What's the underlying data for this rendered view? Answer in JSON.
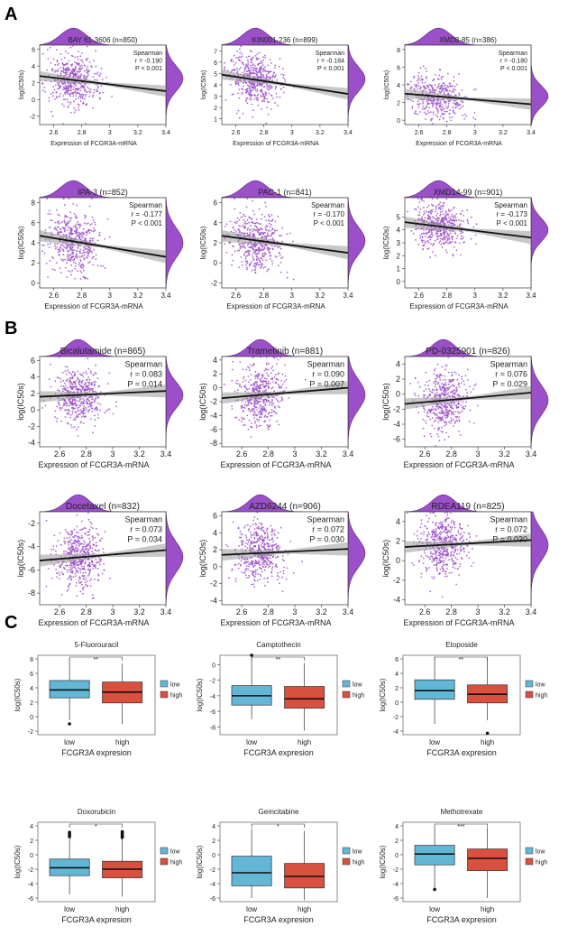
{
  "figure": {
    "panel_labels": [
      "A",
      "B",
      "C"
    ],
    "accent_color": "#9b4fc8",
    "density_fill": "#9b4fc8",
    "point_color": "#9b4fc8",
    "low_color": "#62b6d6",
    "high_color": "#d9503f"
  },
  "chart_data": [
    {
      "panel": "A",
      "type": "scatter",
      "title": "BAY 61-3606 (n=850)",
      "xlabel": "Expression of FCGR3A-mRNA",
      "ylabel": "log(IC50s)",
      "xlim": [
        2.5,
        3.4
      ],
      "ylim": [
        -3,
        6.5
      ],
      "xticks": [
        2.6,
        2.8,
        3.0,
        3.2,
        3.4
      ],
      "yticks": [
        -2,
        0,
        2,
        4,
        6
      ],
      "stat_label": "Spearman",
      "r_label": "r = -0.190",
      "p_label": "P < 0.001",
      "r": -0.19,
      "n": 850,
      "fit": {
        "x": [
          2.5,
          3.4
        ],
        "y": [
          2.8,
          1.0
        ]
      },
      "center": [
        2.74,
        2.5
      ],
      "spread": [
        0.09,
        1.5
      ]
    },
    {
      "panel": "A",
      "type": "scatter",
      "title": "KIN001-236 (n=899)",
      "xlabel": "Expression of FCGR3A-mRNA",
      "ylabel": "log(IC50s)",
      "xlim": [
        2.5,
        3.4
      ],
      "ylim": [
        0.5,
        7.5
      ],
      "xticks": [
        2.6,
        2.8,
        3.0,
        3.2,
        3.4
      ],
      "yticks": [
        1,
        2,
        3,
        4,
        5,
        6,
        7
      ],
      "stat_label": "Spearman",
      "r_label": "r = -0.184",
      "p_label": "P < 0.001",
      "r": -0.184,
      "n": 899,
      "fit": {
        "x": [
          2.5,
          3.4
        ],
        "y": [
          4.9,
          3.2
        ]
      },
      "center": [
        2.74,
        4.5
      ],
      "spread": [
        0.09,
        1.1
      ]
    },
    {
      "panel": "A",
      "type": "scatter",
      "title": "XMD8-85 (n=386)",
      "xlabel": "Expression of FCGR3A-mRNA",
      "ylabel": "log(IC50s)",
      "xlim": [
        2.5,
        3.4
      ],
      "ylim": [
        -0.5,
        8.5
      ],
      "xticks": [
        2.6,
        2.8,
        3.0,
        3.2,
        3.4
      ],
      "yticks": [
        0,
        2,
        4,
        6,
        8
      ],
      "stat_label": "Spearman",
      "r_label": "r = -0.180",
      "p_label": "P < 0.001",
      "r": -0.18,
      "n": 386,
      "fit": {
        "x": [
          2.5,
          3.4
        ],
        "y": [
          3.0,
          1.8
        ]
      },
      "center": [
        2.74,
        2.7
      ],
      "spread": [
        0.09,
        1.2
      ]
    },
    {
      "panel": "A",
      "type": "scatter",
      "title": "IPA-3 (n=852)",
      "xlabel": "Expression of FCGR3A-mRNA",
      "ylabel": "log(IC50s)",
      "xlim": [
        2.5,
        3.4
      ],
      "ylim": [
        -0.5,
        8.5
      ],
      "xticks": [
        2.6,
        2.8,
        3.0,
        3.2,
        3.4
      ],
      "yticks": [
        0,
        2,
        4,
        6,
        8
      ],
      "stat_label": "Spearman",
      "r_label": "r = -0.177",
      "p_label": "P < 0.001",
      "r": -0.177,
      "n": 852,
      "fit": {
        "x": [
          2.5,
          3.4
        ],
        "y": [
          4.7,
          2.6
        ]
      },
      "center": [
        2.74,
        4.0
      ],
      "spread": [
        0.09,
        1.5
      ]
    },
    {
      "panel": "A",
      "type": "scatter",
      "title": "PAC-1 (n=841)",
      "xlabel": "Expression of FCGR3A-mRNA",
      "ylabel": "log(IC50s)",
      "xlim": [
        2.5,
        3.4
      ],
      "ylim": [
        -2.5,
        6.5
      ],
      "xticks": [
        2.6,
        2.8,
        3.0,
        3.2,
        3.4
      ],
      "yticks": [
        -2,
        0,
        2,
        4,
        6
      ],
      "stat_label": "Spearman",
      "r_label": "r = -0.170",
      "p_label": "P < 0.001",
      "r": -0.17,
      "n": 841,
      "fit": {
        "x": [
          2.5,
          3.4
        ],
        "y": [
          2.7,
          1.0
        ]
      },
      "center": [
        2.74,
        2.2
      ],
      "spread": [
        0.09,
        1.4
      ]
    },
    {
      "panel": "A",
      "type": "scatter",
      "title": "XMD14-99 (n=901)",
      "xlabel": "Expression of FCGR3A-mRNA",
      "ylabel": "log(IC50s)",
      "xlim": [
        2.5,
        3.4
      ],
      "ylim": [
        -0.5,
        6.5
      ],
      "xticks": [
        2.6,
        2.8,
        3.0,
        3.2,
        3.4
      ],
      "yticks": [
        0,
        1,
        2,
        3,
        4,
        5
      ],
      "stat_label": "Spearman",
      "r_label": "r = -0.173",
      "p_label": "P < 0.001",
      "r": -0.173,
      "n": 901,
      "fit": {
        "x": [
          2.5,
          3.4
        ],
        "y": [
          4.6,
          3.4
        ]
      },
      "center": [
        2.74,
        4.0
      ],
      "spread": [
        0.09,
        0.9
      ]
    },
    {
      "panel": "B",
      "type": "scatter",
      "title": "Bicalutamide (n=865)",
      "xlabel": "Expression of FCGR3A-mRNA",
      "ylabel": "log(IC50s)",
      "xlim": [
        2.45,
        3.4
      ],
      "ylim": [
        -4.5,
        6.5
      ],
      "xticks": [
        2.6,
        2.8,
        3.0,
        3.2,
        3.4
      ],
      "yticks": [
        -4,
        -2,
        0,
        2,
        4,
        6
      ],
      "stat_label": "Spearman",
      "r_label": "r = 0.083",
      "p_label": "P = 0.014",
      "r": 0.083,
      "n": 865,
      "fit": {
        "x": [
          2.45,
          3.4
        ],
        "y": [
          1.6,
          2.3
        ]
      },
      "center": [
        2.74,
        1.8
      ],
      "spread": [
        0.09,
        1.6
      ]
    },
    {
      "panel": "B",
      "type": "scatter",
      "title": "Trametinib (n=881)",
      "xlabel": "Expression of FCGR3A-mRNA",
      "ylabel": "log(IC50s)",
      "xlim": [
        2.45,
        3.4
      ],
      "ylim": [
        -8.5,
        4.5
      ],
      "xticks": [
        2.6,
        2.8,
        3.0,
        3.2,
        3.4
      ],
      "yticks": [
        -8,
        -6,
        -4,
        -2,
        0,
        2,
        4
      ],
      "stat_label": "Spearman",
      "r_label": "r = 0.090",
      "p_label": "P = 0.007",
      "r": 0.09,
      "n": 881,
      "fit": {
        "x": [
          2.45,
          3.4
        ],
        "y": [
          -1.5,
          0.0
        ]
      },
      "center": [
        2.74,
        -1.0
      ],
      "spread": [
        0.09,
        2.2
      ]
    },
    {
      "panel": "B",
      "type": "scatter",
      "title": "PD-0325901 (n=826)",
      "xlabel": "Expression of FCGR3A-mRNA",
      "ylabel": "log(IC50s)",
      "xlim": [
        2.45,
        3.4
      ],
      "ylim": [
        -7,
        5
      ],
      "xticks": [
        2.6,
        2.8,
        3.0,
        3.2,
        3.4
      ],
      "yticks": [
        -6,
        -4,
        -2,
        0,
        2,
        4
      ],
      "stat_label": "Spearman",
      "r_label": "r = 0.076",
      "p_label": "P = 0.029",
      "r": 0.076,
      "n": 826,
      "fit": {
        "x": [
          2.45,
          3.4
        ],
        "y": [
          -1.3,
          0.2
        ]
      },
      "center": [
        2.74,
        -0.8
      ],
      "spread": [
        0.09,
        2.0
      ]
    },
    {
      "panel": "B",
      "type": "scatter",
      "title": "Docetaxel (n=832)",
      "xlabel": "Expression of FCGR3A-mRNA",
      "ylabel": "log(IC50s)",
      "xlim": [
        2.45,
        3.4
      ],
      "ylim": [
        -9,
        -1
      ],
      "xticks": [
        2.6,
        2.8,
        3.0,
        3.2,
        3.4
      ],
      "yticks": [
        -8,
        -6,
        -4,
        -2
      ],
      "stat_label": "Spearman",
      "r_label": "r = 0.073",
      "p_label": "P = 0.034",
      "r": 0.073,
      "n": 832,
      "fit": {
        "x": [
          2.45,
          3.4
        ],
        "y": [
          -5.2,
          -4.3
        ]
      },
      "center": [
        2.74,
        -4.9
      ],
      "spread": [
        0.09,
        1.3
      ]
    },
    {
      "panel": "B",
      "type": "scatter",
      "title": "AZD6244 (n=906)",
      "xlabel": "Expression of FCGR3A-mRNA",
      "ylabel": "log(IC50s)",
      "xlim": [
        2.45,
        3.4
      ],
      "ylim": [
        -4.5,
        6.5
      ],
      "xticks": [
        2.6,
        2.8,
        3.0,
        3.2,
        3.4
      ],
      "yticks": [
        -4,
        -2,
        0,
        2,
        4,
        6
      ],
      "stat_label": "Spearman",
      "r_label": "r = 0.072",
      "p_label": "P = 0.030",
      "r": 0.072,
      "n": 906,
      "fit": {
        "x": [
          2.45,
          3.4
        ],
        "y": [
          1.4,
          2.1
        ]
      },
      "center": [
        2.74,
        1.6
      ],
      "spread": [
        0.09,
        1.7
      ]
    },
    {
      "panel": "B",
      "type": "scatter",
      "title": "RDEA119 (n=825)",
      "xlabel": "Expression of FCGR3A-mRNA",
      "ylabel": "log(IC50s)",
      "xlim": [
        2.45,
        3.4
      ],
      "ylim": [
        -4.5,
        5
      ],
      "xticks": [
        2.6,
        2.8,
        3.0,
        3.2,
        3.4
      ],
      "yticks": [
        -4,
        -2,
        0,
        2,
        4
      ],
      "stat_label": "Spearman",
      "r_label": "r = 0.072",
      "p_label": "P = 0.030",
      "r": 0.072,
      "n": 825,
      "fit": {
        "x": [
          2.45,
          3.4
        ],
        "y": [
          1.4,
          2.1
        ]
      },
      "center": [
        2.74,
        1.6
      ],
      "spread": [
        0.09,
        1.6
      ]
    },
    {
      "panel": "C",
      "type": "box",
      "title": "5-Fluorouracil",
      "xlabel": "FCGR3A expresion",
      "ylabel": "log(IC50s)",
      "categories": [
        "low",
        "high"
      ],
      "legend": [
        "low",
        "high"
      ],
      "sig": "**",
      "ylim": [
        -2.5,
        8.5
      ],
      "yticks": [
        -2,
        0,
        2,
        4,
        6,
        8
      ],
      "boxes": [
        {
          "min": -0.5,
          "q1": 2.6,
          "med": 3.7,
          "q3": 5.0,
          "max": 8.0,
          "outliers": [
            -1.0
          ]
        },
        {
          "min": -1.0,
          "q1": 1.9,
          "med": 3.4,
          "q3": 4.8,
          "max": 7.3,
          "outliers": []
        }
      ]
    },
    {
      "panel": "C",
      "type": "box",
      "title": "Camptothecin",
      "xlabel": "FCGR3A expresion",
      "ylabel": "log(IC50s)",
      "categories": [
        "low",
        "high"
      ],
      "legend": [
        "low",
        "high"
      ],
      "sig": "**",
      "ylim": [
        -9,
        1.2
      ],
      "yticks": [
        -8,
        -6,
        -4,
        -2,
        0
      ],
      "boxes": [
        {
          "min": -7.0,
          "q1": -5.2,
          "med": -4.0,
          "q3": -2.7,
          "max": 1.2,
          "outliers": [
            1.2
          ]
        },
        {
          "min": -8.5,
          "q1": -5.6,
          "med": -4.4,
          "q3": -2.8,
          "max": 0.2,
          "outliers": []
        }
      ]
    },
    {
      "panel": "C",
      "type": "box",
      "title": "Etoposide",
      "xlabel": "FCGR3A expresion",
      "ylabel": "log(IC50s)",
      "categories": [
        "low",
        "high"
      ],
      "legend": [
        "low",
        "high"
      ],
      "sig": "**",
      "ylim": [
        -4.5,
        6.5
      ],
      "yticks": [
        -4,
        -2,
        0,
        2,
        4,
        6
      ],
      "boxes": [
        {
          "min": -3.0,
          "q1": 0.4,
          "med": 1.6,
          "q3": 3.1,
          "max": 6.3,
          "outliers": []
        },
        {
          "min": -2.5,
          "q1": -0.1,
          "med": 1.1,
          "q3": 2.4,
          "max": 6.2,
          "outliers": [
            -4.3
          ]
        }
      ]
    },
    {
      "panel": "C",
      "type": "box",
      "title": "Doxorubicin",
      "xlabel": "FCGR3A expresion",
      "ylabel": "log(IC50s)",
      "categories": [
        "low",
        "high"
      ],
      "legend": [
        "low",
        "high"
      ],
      "sig": "*",
      "ylim": [
        -6.5,
        4.5
      ],
      "yticks": [
        -6,
        -4,
        -2,
        0,
        2,
        4
      ],
      "boxes": [
        {
          "min": -5.5,
          "q1": -2.9,
          "med": -1.8,
          "q3": -0.6,
          "max": 2.3,
          "outliers": [
            2.5,
            2.7,
            2.9,
            3.1
          ]
        },
        {
          "min": -5.8,
          "q1": -3.2,
          "med": -2.0,
          "q3": -0.9,
          "max": 2.2,
          "outliers": [
            2.4,
            2.6,
            2.8,
            3.0,
            3.2
          ]
        }
      ]
    },
    {
      "panel": "C",
      "type": "box",
      "title": "Gemcitabine",
      "xlabel": "FCGR3A expresion",
      "ylabel": "log(IC50s)",
      "categories": [
        "low",
        "high"
      ],
      "legend": [
        "low",
        "high"
      ],
      "sig": "*",
      "ylim": [
        -6.5,
        4.5
      ],
      "yticks": [
        -6,
        -4,
        -2,
        0,
        2,
        4
      ],
      "boxes": [
        {
          "min": -6.0,
          "q1": -4.3,
          "med": -2.5,
          "q3": -0.2,
          "max": 3.6,
          "outliers": []
        },
        {
          "min": -6.3,
          "q1": -4.6,
          "med": -3.0,
          "q3": -1.2,
          "max": 3.3,
          "outliers": []
        }
      ]
    },
    {
      "panel": "C",
      "type": "box",
      "title": "Methotrexate",
      "xlabel": "FCGR3A expresion",
      "ylabel": "log(IC50s)",
      "categories": [
        "low",
        "high"
      ],
      "legend": [
        "low",
        "high"
      ],
      "sig": "***",
      "ylim": [
        -6.5,
        4.5
      ],
      "yticks": [
        -6,
        -4,
        -2,
        0,
        2,
        4
      ],
      "boxes": [
        {
          "min": -4.6,
          "q1": -1.4,
          "med": 0.1,
          "q3": 1.3,
          "max": 3.8,
          "outliers": [
            -4.8
          ]
        },
        {
          "min": -6.0,
          "q1": -2.2,
          "med": -0.5,
          "q3": 0.8,
          "max": 3.7,
          "outliers": []
        }
      ]
    }
  ]
}
